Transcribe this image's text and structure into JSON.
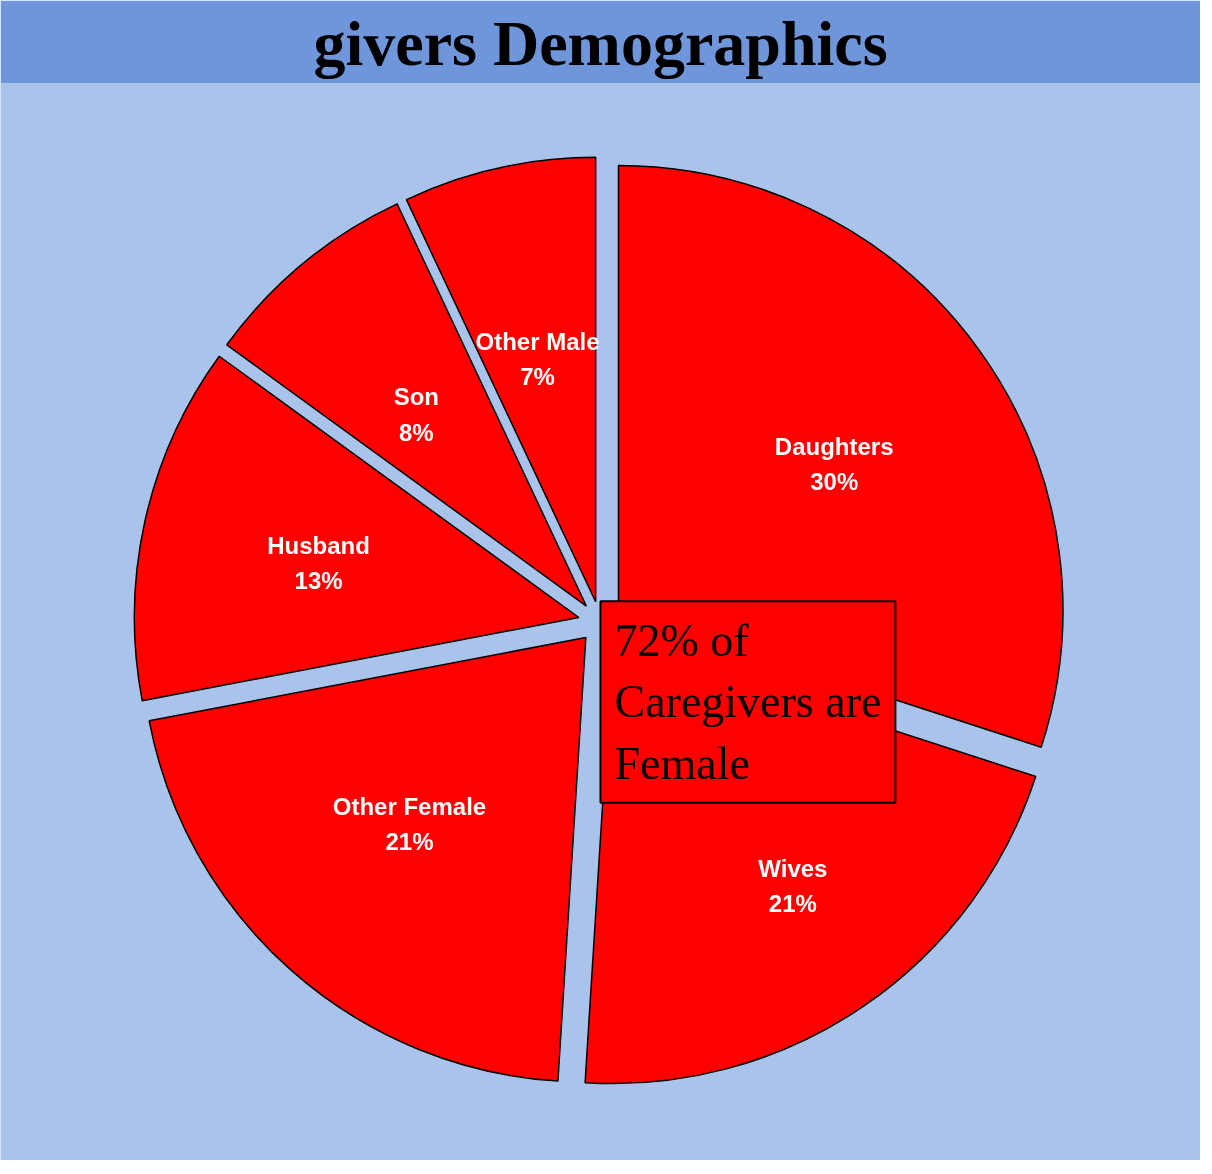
{
  "chart_data": {
    "type": "pie",
    "title": "givers Demographics",
    "categories": [
      "Daughters",
      "Wives",
      "Other Female",
      "Husband",
      "Son",
      "Other Male"
    ],
    "values": [
      30,
      21,
      21,
      13,
      8,
      7
    ],
    "colors": [
      "#ff0000",
      "#ff0000",
      "#ff0000",
      "#ff0000",
      "#ff0000",
      "#ff0000"
    ],
    "value_labels": [
      "30%",
      "21%",
      "21%",
      "13%",
      "8%",
      "7%"
    ],
    "annotations": [
      "72% of Caregivers are Female"
    ]
  }
}
